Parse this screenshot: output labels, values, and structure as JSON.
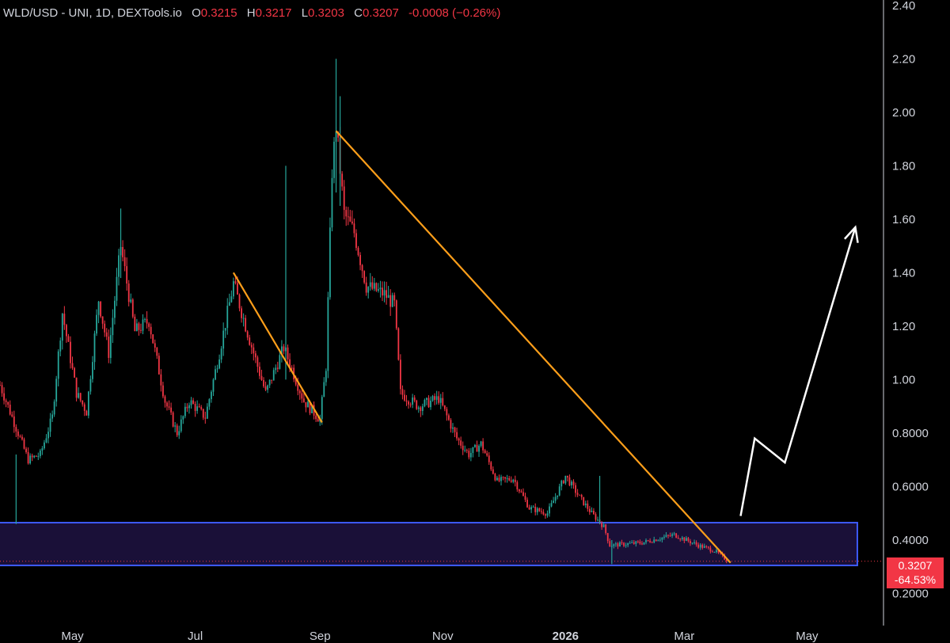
{
  "header": {
    "symbol": "WLD/USD - UNI, 1D, DEXTools.io",
    "o_label": "O",
    "o_value": "0.3215",
    "h_label": "H",
    "h_value": "0.3217",
    "l_label": "L",
    "l_value": "0.3203",
    "c_label": "C",
    "c_value": "0.3207",
    "change": "-0.0008 (−0.26%)"
  },
  "price_badge": {
    "price": "0.3207",
    "change_pct": "-64.53%"
  },
  "colors": {
    "up": "#26a69a",
    "down": "#f23645",
    "trendline": "#ff9f1a",
    "zone_border": "#3d5afe",
    "zone_fill": "#1a1038",
    "projection": "#ffffff"
  },
  "chart_data": {
    "type": "candlestick",
    "y_axis": {
      "ylim": [
        0.08,
        2.42
      ],
      "ticks": [
        {
          "value": 2.4,
          "label": "2.40"
        },
        {
          "value": 2.2,
          "label": "2.20"
        },
        {
          "value": 2.0,
          "label": "2.00"
        },
        {
          "value": 1.8,
          "label": "1.80"
        },
        {
          "value": 1.6,
          "label": "1.60"
        },
        {
          "value": 1.4,
          "label": "1.40"
        },
        {
          "value": 1.2,
          "label": "1.20"
        },
        {
          "value": 1.0,
          "label": "1.00"
        },
        {
          "value": 0.8,
          "label": "0.8000"
        },
        {
          "value": 0.6,
          "label": "0.6000"
        },
        {
          "value": 0.4,
          "label": "0.4000"
        },
        {
          "value": 0.2,
          "label": "0.2000"
        }
      ]
    },
    "x_axis": {
      "xlim": [
        "2025-03-26",
        "2026-06-08"
      ],
      "ticks": [
        {
          "date": "2025-05-01",
          "label": "May"
        },
        {
          "date": "2025-07-01",
          "label": "Jul"
        },
        {
          "date": "2025-09-01",
          "label": "Sep"
        },
        {
          "date": "2025-11-01",
          "label": "Nov"
        },
        {
          "date": "2026-01-01",
          "label": "2026",
          "bold": true
        },
        {
          "date": "2026-03-01",
          "label": "Mar"
        },
        {
          "date": "2026-05-01",
          "label": "May"
        }
      ]
    },
    "price_path": [
      [
        "2025-03-26",
        0.98
      ],
      [
        "2025-04-04",
        0.8
      ],
      [
        "2025-04-09",
        0.7
      ],
      [
        "2025-04-15",
        0.72
      ],
      [
        "2025-04-21",
        0.86
      ],
      [
        "2025-04-26",
        1.25
      ],
      [
        "2025-05-03",
        0.95
      ],
      [
        "2025-05-08",
        0.88
      ],
      [
        "2025-05-14",
        1.3
      ],
      [
        "2025-05-19",
        1.1
      ],
      [
        "2025-05-25",
        1.5
      ],
      [
        "2025-06-01",
        1.18
      ],
      [
        "2025-06-08",
        1.22
      ],
      [
        "2025-06-16",
        0.92
      ],
      [
        "2025-06-22",
        0.8
      ],
      [
        "2025-06-28",
        0.92
      ],
      [
        "2025-07-06",
        0.86
      ],
      [
        "2025-07-13",
        1.1
      ],
      [
        "2025-07-20",
        1.36
      ],
      [
        "2025-07-28",
        1.15
      ],
      [
        "2025-08-05",
        0.95
      ],
      [
        "2025-08-14",
        1.12
      ],
      [
        "2025-08-24",
        0.92
      ],
      [
        "2025-09-01",
        0.85
      ],
      [
        "2025-09-04",
        1.05
      ],
      [
        "2025-09-07",
        1.78
      ],
      [
        "2025-09-09",
        1.95
      ],
      [
        "2025-09-13",
        1.62
      ],
      [
        "2025-09-18",
        1.55
      ],
      [
        "2025-09-24",
        1.35
      ],
      [
        "2025-10-03",
        1.32
      ],
      [
        "2025-10-08",
        1.28
      ],
      [
        "2025-10-11",
        0.95
      ],
      [
        "2025-10-20",
        0.9
      ],
      [
        "2025-10-30",
        0.93
      ],
      [
        "2025-11-08",
        0.78
      ],
      [
        "2025-11-14",
        0.72
      ],
      [
        "2025-11-20",
        0.76
      ],
      [
        "2025-11-28",
        0.62
      ],
      [
        "2025-12-06",
        0.63
      ],
      [
        "2025-12-14",
        0.52
      ],
      [
        "2025-12-23",
        0.5
      ],
      [
        "2026-01-01",
        0.64
      ],
      [
        "2026-01-08",
        0.56
      ],
      [
        "2026-01-14",
        0.5
      ],
      [
        "2026-01-20",
        0.45
      ],
      [
        "2026-01-23",
        0.38
      ],
      [
        "2026-02-08",
        0.39
      ],
      [
        "2026-02-24",
        0.42
      ],
      [
        "2026-03-08",
        0.38
      ],
      [
        "2026-03-16",
        0.36
      ],
      [
        "2026-03-23",
        0.3207
      ]
    ],
    "wick_spikes": [
      {
        "date": "2025-04-03",
        "high": 0.72,
        "low": 0.46
      },
      {
        "date": "2025-05-25",
        "high": 1.64,
        "low": 1.38
      },
      {
        "date": "2025-08-15",
        "high": 1.8,
        "low": 1.0
      },
      {
        "date": "2025-09-09",
        "high": 2.2,
        "low": 1.7
      },
      {
        "date": "2025-09-11",
        "high": 2.06,
        "low": 1.65
      },
      {
        "date": "2026-01-18",
        "high": 0.64,
        "low": 0.46
      },
      {
        "date": "2026-01-24",
        "high": 0.4,
        "low": 0.31
      }
    ],
    "annotations": {
      "support_zone": {
        "x_start": "2025-03-26",
        "x_end": "2026-05-26",
        "low": 0.305,
        "high": 0.465
      },
      "trendlines": [
        {
          "from": [
            "2025-07-20",
            1.4
          ],
          "to": [
            "2025-09-02",
            0.84
          ]
        },
        {
          "from": [
            "2025-09-09",
            1.93
          ],
          "to": [
            "2026-03-24",
            0.315
          ]
        }
      ],
      "projection": [
        [
          "2026-03-29",
          0.49
        ],
        [
          "2026-04-05",
          0.78
        ],
        [
          "2026-04-20",
          0.69
        ],
        [
          "2026-05-25",
          1.57
        ]
      ],
      "last_price_line": 0.3207
    }
  }
}
